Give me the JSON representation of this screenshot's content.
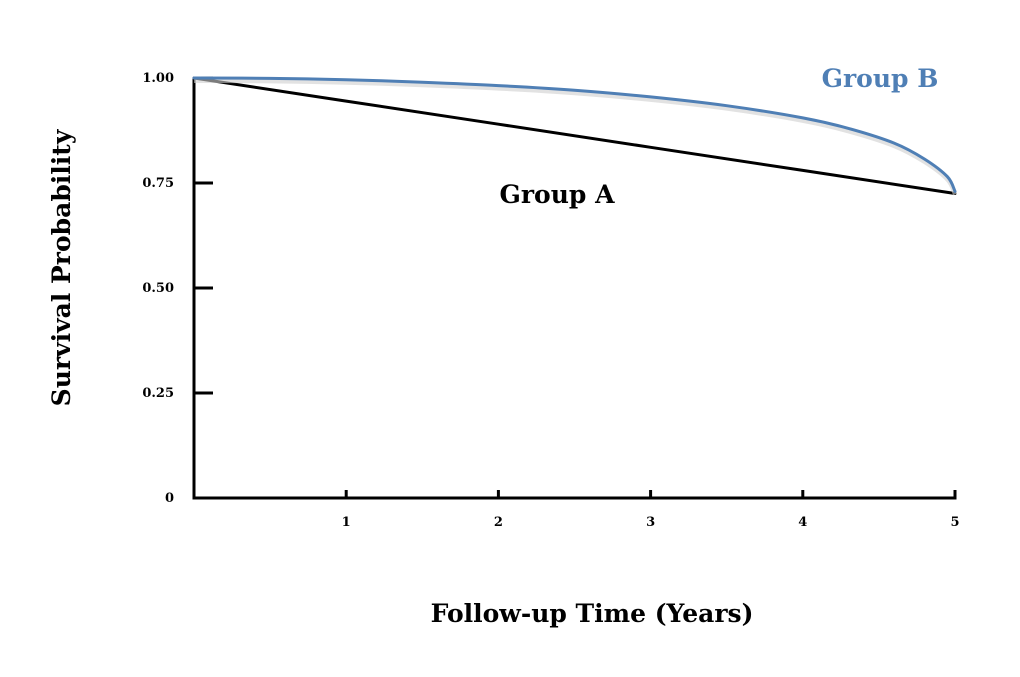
{
  "chart_data": {
    "type": "line",
    "title": "",
    "xlabel": "Follow-up Time (Years)",
    "ylabel": "Survival Probability",
    "xlim": [
      0,
      5
    ],
    "ylim": [
      0,
      1
    ],
    "x_ticks": [
      1,
      2,
      3,
      4,
      5
    ],
    "x_tick_labels": [
      "1",
      "2",
      "3",
      "4",
      "5"
    ],
    "y_ticks": [
      0,
      0.25,
      0.5,
      0.75,
      1.0
    ],
    "y_tick_labels": [
      "0",
      "0.25",
      "0.50",
      "0.75",
      "1.00"
    ],
    "grid": false,
    "legend": "direct labels",
    "series": [
      {
        "name": "Group A",
        "color": "#000000",
        "x": [
          0,
          1,
          2,
          3,
          4,
          5
        ],
        "y": [
          1.0,
          0.945,
          0.89,
          0.835,
          0.78,
          0.725
        ]
      },
      {
        "name": "Group B",
        "color": "#4f7fb5",
        "x": [
          0,
          0.5,
          1,
          1.5,
          2,
          2.5,
          3,
          3.5,
          4,
          4.3,
          4.6,
          4.8,
          4.95,
          5
        ],
        "y": [
          1.0,
          0.999,
          0.996,
          0.99,
          0.982,
          0.971,
          0.955,
          0.934,
          0.905,
          0.88,
          0.845,
          0.807,
          0.765,
          0.73
        ]
      }
    ]
  }
}
